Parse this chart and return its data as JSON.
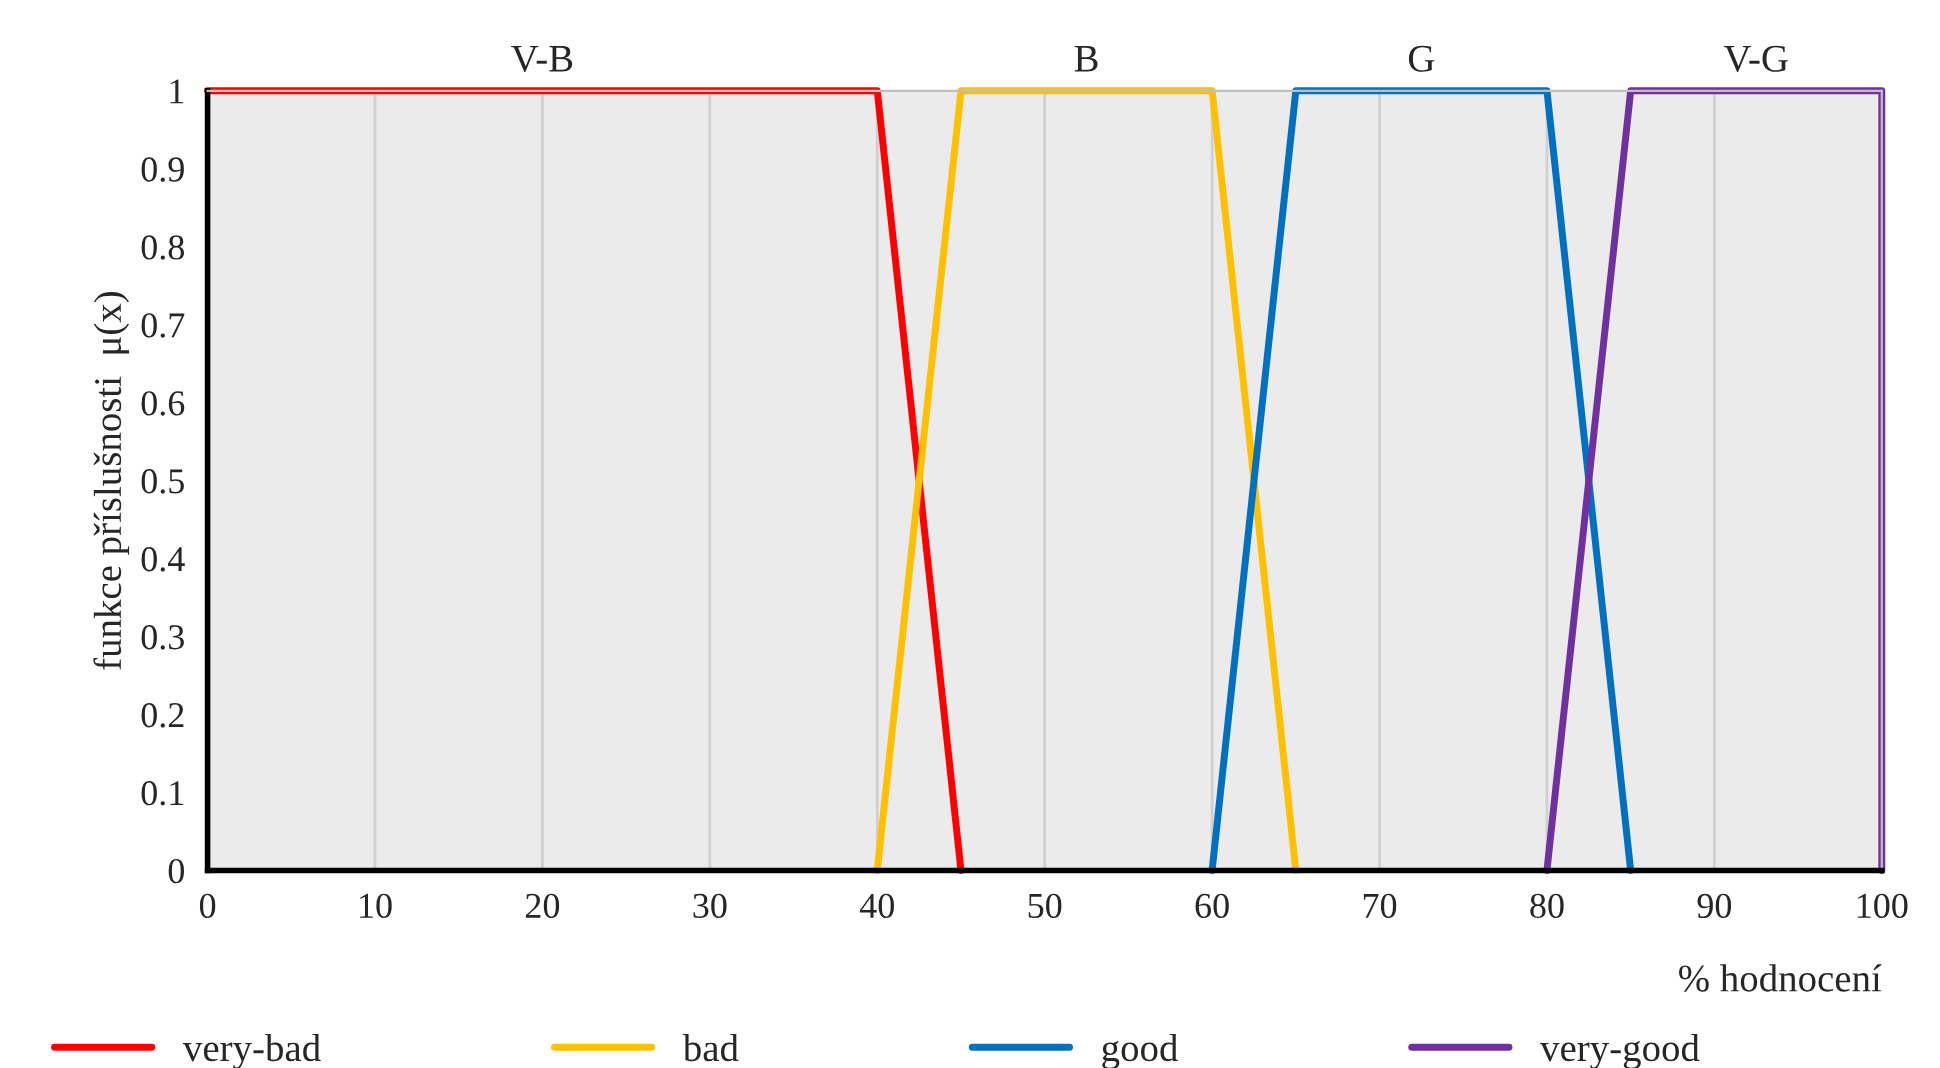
{
  "chart_data": {
    "type": "line",
    "xlabel": "% hodnocení",
    "ylabel": "funkce příslušnosti  μ(x)",
    "series": [
      {
        "name": "very-bad",
        "color": "#ff0000",
        "x": [
          0,
          40,
          45
        ],
        "values": [
          1,
          1,
          0
        ]
      },
      {
        "name": "bad",
        "color": "#ffc000",
        "x": [
          40,
          45,
          60,
          65
        ],
        "values": [
          0,
          1,
          1,
          0
        ]
      },
      {
        "name": "good",
        "color": "#0070c0",
        "x": [
          60,
          65,
          80,
          85
        ],
        "values": [
          0,
          1,
          1,
          0
        ]
      },
      {
        "name": "very-good",
        "color": "#7030a0",
        "x": [
          80,
          85,
          100,
          100
        ],
        "values": [
          0,
          1,
          1,
          0
        ]
      }
    ],
    "annotations": [
      {
        "text": "V-B",
        "x": 20,
        "y": 1
      },
      {
        "text": "B",
        "x": 52.5,
        "y": 1
      },
      {
        "text": "G",
        "x": 72.5,
        "y": 1
      },
      {
        "text": "V-G",
        "x": 92.5,
        "y": 1
      }
    ],
    "xlim": [
      0,
      100
    ],
    "xticks": [
      0,
      10,
      20,
      30,
      40,
      50,
      60,
      70,
      80,
      90,
      100
    ],
    "ylim": [
      0,
      1
    ],
    "yticks": [
      0,
      0.1,
      0.2,
      0.3,
      0.4,
      0.5,
      0.6,
      0.7,
      0.8,
      0.9,
      1
    ],
    "grid": "x",
    "legend": "bottom",
    "marker": "none",
    "line_style": "solid"
  }
}
